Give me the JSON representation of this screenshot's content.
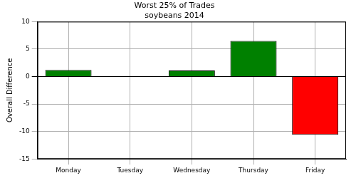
{
  "chart_data": {
    "type": "bar",
    "title": "Worst 25% of Trades",
    "subtitle": "soybeans 2014",
    "y_label": "Overall Difference",
    "categories": [
      "Monday",
      "Tuesday",
      "Wednesday",
      "Thursday",
      "Friday"
    ],
    "values": [
      1.2,
      0.1,
      1.1,
      6.5,
      -10.6
    ],
    "colors": [
      "#008000",
      "#008000",
      "#008000",
      "#008000",
      "#ff0000"
    ],
    "ylim": [
      -15,
      10
    ],
    "yticks": [
      -15,
      -10,
      -5,
      0,
      5,
      10
    ],
    "grid": true
  }
}
